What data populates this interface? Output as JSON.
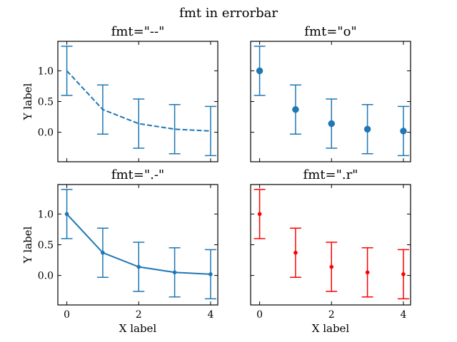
{
  "figure": {
    "suptitle": "fmt in errorbar"
  },
  "chart_data": [
    {
      "type": "line",
      "title": "fmt=\"--\"",
      "fmt": "--",
      "xlabel": "",
      "ylabel": "Y label",
      "color": "#1f77b4",
      "linestyle": "dashed",
      "marker": "none",
      "x": [
        0,
        1,
        2,
        3,
        4
      ],
      "y": [
        1.0,
        0.37,
        0.14,
        0.05,
        0.02
      ],
      "yerr": [
        0.4,
        0.4,
        0.4,
        0.4,
        0.4
      ],
      "xlim": [
        -0.25,
        4.2
      ],
      "ylim": [
        -0.48,
        1.48
      ],
      "xticks": [
        "0",
        "2",
        "4"
      ],
      "yticks": [
        "0.0",
        "0.5",
        "1.0"
      ],
      "show_xticklabels": false,
      "show_yticklabels": true
    },
    {
      "type": "scatter",
      "title": "fmt=\"o\"",
      "fmt": "o",
      "xlabel": "",
      "ylabel": "",
      "color": "#1f77b4",
      "linestyle": "none",
      "marker": "circle-large",
      "x": [
        0,
        1,
        2,
        3,
        4
      ],
      "y": [
        1.0,
        0.37,
        0.14,
        0.05,
        0.02
      ],
      "yerr": [
        0.4,
        0.4,
        0.4,
        0.4,
        0.4
      ],
      "xlim": [
        -0.25,
        4.2
      ],
      "ylim": [
        -0.48,
        1.48
      ],
      "xticks": [
        "0",
        "2",
        "4"
      ],
      "yticks": [
        "0.0",
        "0.5",
        "1.0"
      ],
      "show_xticklabels": false,
      "show_yticklabels": false
    },
    {
      "type": "line",
      "title": "fmt=\".-\"",
      "fmt": ".-",
      "xlabel": "X label",
      "ylabel": "Y label",
      "color": "#1f77b4",
      "linestyle": "solid",
      "marker": "point",
      "x": [
        0,
        1,
        2,
        3,
        4
      ],
      "y": [
        1.0,
        0.37,
        0.14,
        0.05,
        0.02
      ],
      "yerr": [
        0.4,
        0.4,
        0.4,
        0.4,
        0.4
      ],
      "xlim": [
        -0.25,
        4.2
      ],
      "ylim": [
        -0.48,
        1.48
      ],
      "xticks": [
        "0",
        "2",
        "4"
      ],
      "yticks": [
        "0.0",
        "0.5",
        "1.0"
      ],
      "show_xticklabels": true,
      "show_yticklabels": true
    },
    {
      "type": "scatter",
      "title": "fmt=\".r\"",
      "fmt": ".r",
      "xlabel": "X label",
      "ylabel": "",
      "color": "#ff0000",
      "linestyle": "none",
      "marker": "point",
      "x": [
        0,
        1,
        2,
        3,
        4
      ],
      "y": [
        1.0,
        0.37,
        0.14,
        0.05,
        0.02
      ],
      "yerr": [
        0.4,
        0.4,
        0.4,
        0.4,
        0.4
      ],
      "xlim": [
        -0.25,
        4.2
      ],
      "ylim": [
        -0.48,
        1.48
      ],
      "xticks": [
        "0",
        "2",
        "4"
      ],
      "yticks": [
        "0.0",
        "0.5",
        "1.0"
      ],
      "show_xticklabels": true,
      "show_yticklabels": false
    }
  ]
}
